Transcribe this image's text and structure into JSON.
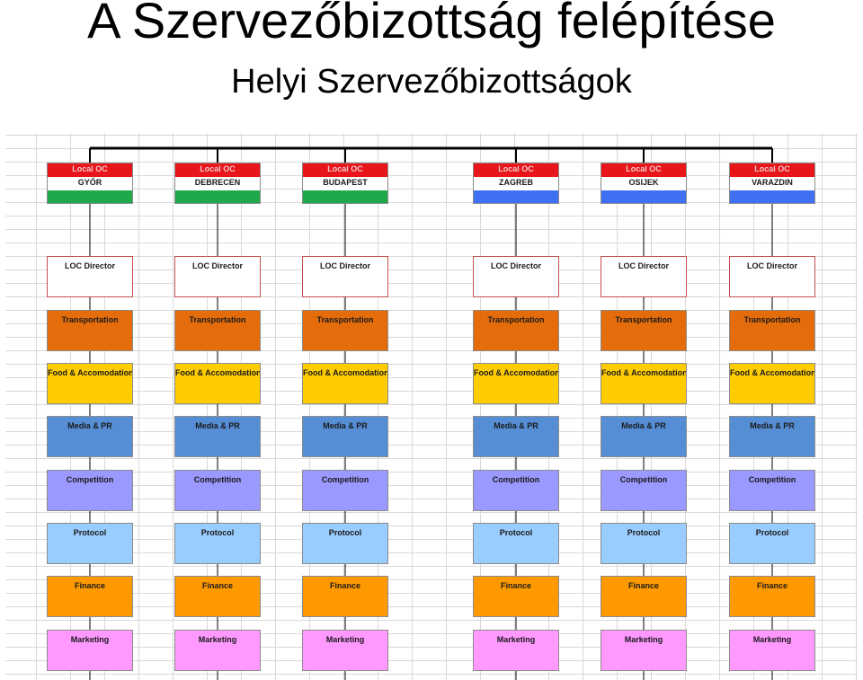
{
  "title": "A Szervezőbizottság felépítése",
  "subtitle": "Helyi Szervezőbizottságok",
  "committees": [
    {
      "label": "Local OC",
      "city": "GYŐR",
      "flag_color": "#20a94a"
    },
    {
      "label": "Local OC",
      "city": "DEBRECEN",
      "flag_color": "#20a94a"
    },
    {
      "label": "Local OC",
      "city": "BUDAPEST",
      "flag_color": "#20a94a"
    },
    {
      "label": "Local OC",
      "city": "ZAGREB",
      "flag_color": "#3f6ff2"
    },
    {
      "label": "Local OC",
      "city": "OSIJEK",
      "flag_color": "#3f6ff2"
    },
    {
      "label": "Local OC",
      "city": "VARAZDIN",
      "flag_color": "#3f6ff2"
    }
  ],
  "roles": [
    {
      "label": "LOC Director",
      "color": "#ffffff",
      "border": "#c0504d"
    },
    {
      "label": "Transportation",
      "color": "#e46c0a",
      "border": "#8c8c8c"
    },
    {
      "label": "Food & Accomodation",
      "color": "#ffcc00",
      "border": "#8c8c8c"
    },
    {
      "label": "Media & PR",
      "color": "#558ed5",
      "border": "#8c8c8c"
    },
    {
      "label": "Competition",
      "color": "#9999ff",
      "border": "#8c8c8c"
    },
    {
      "label": "Protocol",
      "color": "#99ccff",
      "border": "#8c8c8c"
    },
    {
      "label": "Finance",
      "color": "#ff9900",
      "border": "#8c8c8c"
    },
    {
      "label": "Marketing",
      "color": "#ff99ff",
      "border": "#8c8c8c"
    }
  ]
}
